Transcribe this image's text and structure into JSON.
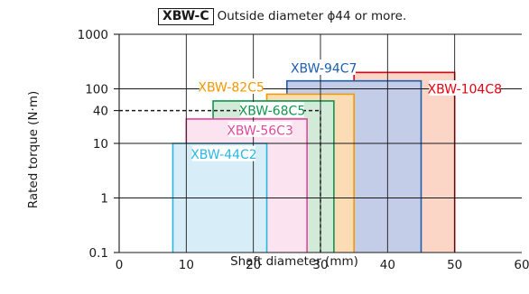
{
  "header": {
    "model": "XBW-C",
    "text": "Outside diameter ϕ44 or more."
  },
  "chart_data": {
    "type": "range-chart",
    "xlabel": "Shaft diameter (mm)",
    "ylabel": "Rated torque (N·m)",
    "xlim": [
      0,
      60
    ],
    "ylim": [
      0.1,
      1000
    ],
    "yscale": "log",
    "x_ticks": [
      "0",
      "10",
      "20",
      "30",
      "40",
      "50",
      "60"
    ],
    "y_ticks": [
      {
        "value": 1000,
        "label": "1000"
      },
      {
        "value": 100,
        "label": "100"
      },
      {
        "value": 40,
        "label": "40"
      },
      {
        "value": 10,
        "label": "10"
      },
      {
        "value": 1,
        "label": "1"
      },
      {
        "value": 0.1,
        "label": "0.1"
      }
    ],
    "grid": true,
    "series": [
      {
        "name": "XBW-104C8",
        "x_range": [
          35,
          50
        ],
        "torque": 200,
        "color": "#e60012",
        "fill": "#fbd5c6"
      },
      {
        "name": "XBW-94C7",
        "x_range": [
          25,
          45
        ],
        "torque": 140,
        "color": "#1d5fb0",
        "fill": "#c3cde8"
      },
      {
        "name": "XBW-82C5",
        "x_range": [
          22,
          35
        ],
        "torque": 80,
        "color": "#f39800",
        "fill": "#fbdcb4"
      },
      {
        "name": "XBW-68C5",
        "x_range": [
          14,
          32
        ],
        "torque": 60,
        "color": "#10964b",
        "fill": "#d2ebd8"
      },
      {
        "name": "XBW-56C3",
        "x_range": [
          10,
          28
        ],
        "torque": 28,
        "color": "#e4479a",
        "fill": "#fbe3ef"
      },
      {
        "name": "XBW-44C2",
        "x_range": [
          8,
          22
        ],
        "torque": 10,
        "color": "#29b8e4",
        "fill": "#d7eef9"
      }
    ],
    "reference_line": {
      "x": 30,
      "y": 40,
      "style": "dashed"
    }
  }
}
